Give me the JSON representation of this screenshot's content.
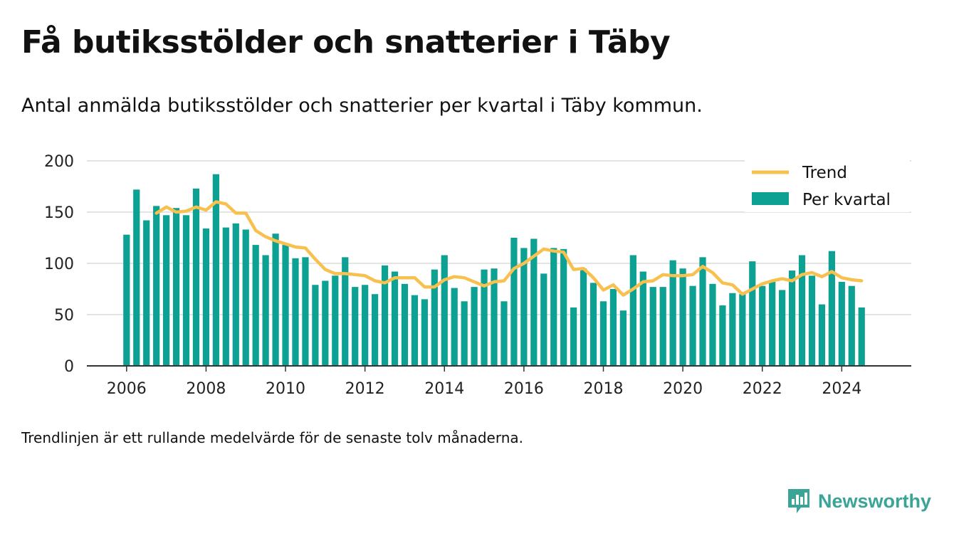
{
  "title": "Få butiksstölder och snatterier i Täby",
  "subtitle": "Antal anmälda butiksstölder och snatterier per kvartal i Täby kommun.",
  "note": "Trendlinjen är ett rullande medelvärde för de senaste tolv månaderna.",
  "brand": {
    "name": "Newsworthy",
    "icon": "newsworthy-logo-icon",
    "color": "#3aa497"
  },
  "colors": {
    "bars": "#0ca193",
    "trend": "#f8c04e",
    "grid": "#dcdcdc",
    "axis": "#333333"
  },
  "chart_data": {
    "type": "bar",
    "x_start": 2006.0,
    "x_step": 0.25,
    "x_ticks": [
      2006,
      2008,
      2010,
      2012,
      2014,
      2016,
      2018,
      2020,
      2022,
      2024
    ],
    "xlim": [
      2005,
      2025.75
    ],
    "ylim": [
      0,
      200
    ],
    "y_ticks": [
      0,
      50,
      100,
      150,
      200
    ],
    "grid": true,
    "legend_position": "top-right",
    "series": [
      {
        "name": "Per kvartal",
        "kind": "bar",
        "values": [
          128,
          172,
          142,
          156,
          147,
          154,
          147,
          173,
          134,
          187,
          135,
          139,
          133,
          118,
          108,
          129,
          118,
          105,
          106,
          79,
          83,
          88,
          106,
          77,
          79,
          70,
          98,
          92,
          80,
          69,
          65,
          94,
          108,
          76,
          63,
          77,
          94,
          95,
          63,
          125,
          115,
          124,
          90,
          115,
          114,
          57,
          95,
          81,
          63,
          75,
          54,
          108,
          92,
          77,
          77,
          103,
          95,
          78,
          106,
          80,
          59,
          71,
          70,
          102,
          78,
          82,
          74,
          93,
          108,
          88,
          60,
          112,
          82,
          78,
          57
        ]
      },
      {
        "name": "Trend",
        "kind": "line",
        "x_start": 2006.75,
        "values": [
          149,
          155,
          150,
          151,
          155,
          152,
          160,
          158,
          149,
          149,
          132,
          126,
          122,
          119,
          116,
          115,
          104,
          94,
          90,
          90,
          89,
          88,
          83,
          81,
          86,
          86,
          86,
          77,
          77,
          84,
          87,
          86,
          82,
          78,
          82,
          83,
          95,
          100,
          107,
          114,
          112,
          111,
          94,
          95,
          86,
          74,
          79,
          69,
          75,
          82,
          83,
          89,
          88,
          88,
          89,
          97,
          91,
          81,
          79,
          70,
          75,
          80,
          83,
          85,
          83,
          89,
          91,
          87,
          92,
          86,
          84,
          83
        ]
      }
    ]
  }
}
